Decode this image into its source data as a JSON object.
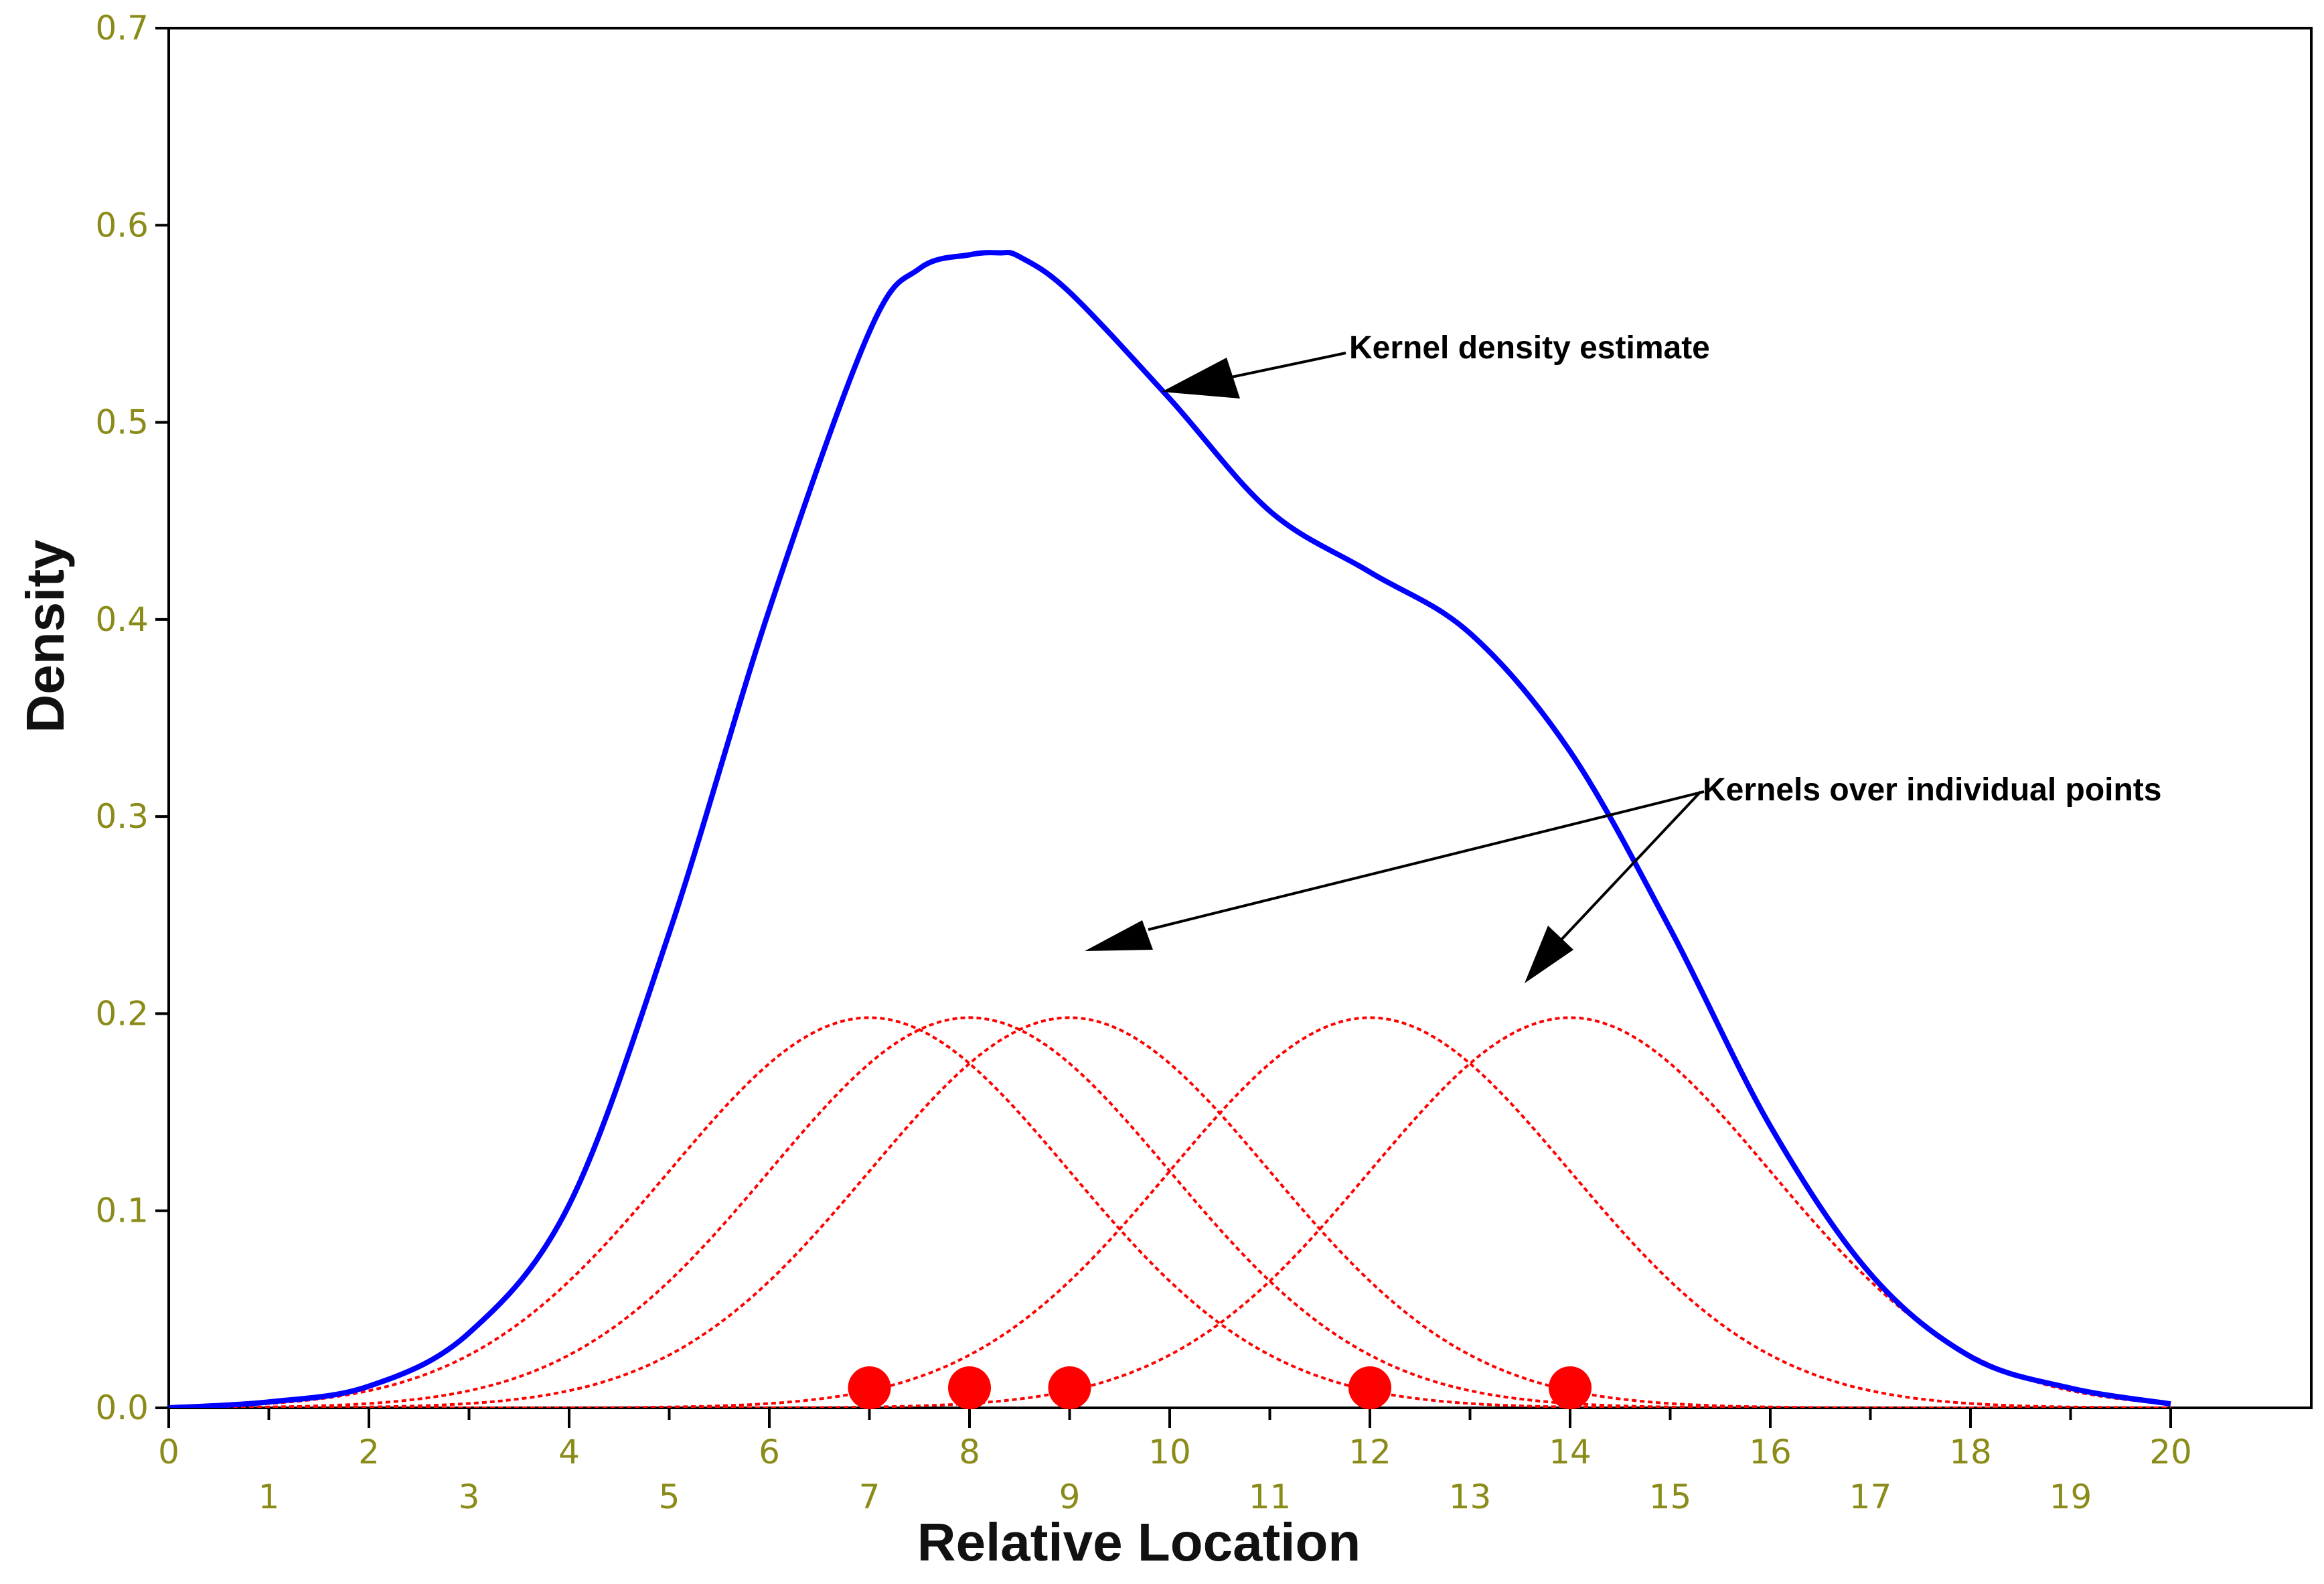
{
  "chart_data": {
    "type": "line",
    "title": "",
    "xlabel": "Relative Location",
    "ylabel": "Density",
    "xlim": [
      0,
      21.5
    ],
    "ylim": [
      0,
      0.7
    ],
    "x_ticks_upper": [
      "0",
      "2",
      "4",
      "6",
      "8",
      "10",
      "12",
      "14",
      "16",
      "18",
      "20"
    ],
    "x_ticks_lower": [
      "1",
      "3",
      "5",
      "7",
      "9",
      "11",
      "13",
      "15",
      "17",
      "19"
    ],
    "y_ticks": [
      "0.0",
      "0.1",
      "0.2",
      "0.3",
      "0.4",
      "0.5",
      "0.6",
      "0.7"
    ],
    "grid": false,
    "points": [
      7,
      8,
      9,
      12,
      14
    ],
    "kernel": {
      "bandwidth": 2.0,
      "peak": 0.198
    },
    "kde_estimate": {
      "x": [
        0,
        1,
        2,
        3,
        4,
        5,
        6,
        7,
        7.5,
        8,
        8.3,
        8.5,
        9,
        10,
        11,
        12,
        13,
        14,
        15,
        16,
        17,
        18,
        19,
        20
      ],
      "y": [
        0.0,
        0.003,
        0.011,
        0.038,
        0.103,
        0.241,
        0.405,
        0.546,
        0.578,
        0.585,
        0.586,
        0.584,
        0.566,
        0.512,
        0.455,
        0.424,
        0.393,
        0.333,
        0.243,
        0.143,
        0.068,
        0.026,
        0.01,
        0.002
      ]
    },
    "annotations": [
      "Kernel density estimate",
      "Kernels over individual points"
    ],
    "colors": {
      "kde": "#0000ff",
      "kernels": "#ff0000",
      "points": "#ff0000",
      "ticks": "#8b8b1a"
    }
  }
}
